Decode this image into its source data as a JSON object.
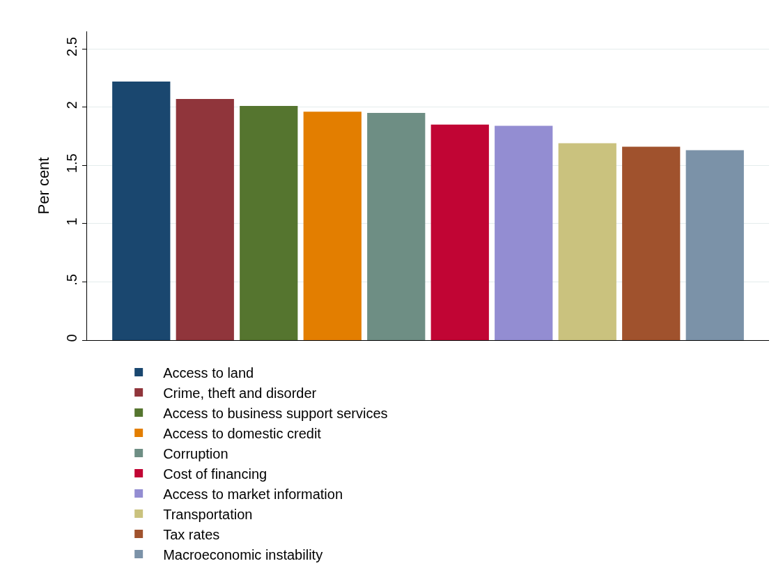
{
  "chart_data": {
    "type": "bar",
    "ylabel": "Per cent",
    "categories": [
      null,
      null,
      null,
      null,
      null,
      null,
      null,
      null,
      null,
      null
    ],
    "series": [
      {
        "name": "Access to land",
        "color": "#1a476f",
        "values": [
          2.22,
          null,
          null,
          null,
          null,
          null,
          null,
          null,
          null,
          null
        ]
      },
      {
        "name": "Crime, theft and disorder",
        "color": "#90353b",
        "values": [
          null,
          2.07,
          null,
          null,
          null,
          null,
          null,
          null,
          null,
          null
        ]
      },
      {
        "name": "Access to business support services",
        "color": "#55752f",
        "values": [
          null,
          null,
          2.01,
          null,
          null,
          null,
          null,
          null,
          null,
          null
        ]
      },
      {
        "name": "Access to domestic credit",
        "color": "#e37e00",
        "values": [
          null,
          null,
          null,
          1.96,
          null,
          null,
          null,
          null,
          null,
          null
        ]
      },
      {
        "name": "Corruption",
        "color": "#6e8e84",
        "values": [
          null,
          null,
          null,
          null,
          1.95,
          null,
          null,
          null,
          null,
          null
        ]
      },
      {
        "name": "Cost of financing",
        "color": "#c10534",
        "values": [
          null,
          null,
          null,
          null,
          null,
          1.85,
          null,
          null,
          null,
          null
        ]
      },
      {
        "name": "Access to market information",
        "color": "#938dd2",
        "values": [
          null,
          null,
          null,
          null,
          null,
          null,
          1.84,
          null,
          null,
          null
        ]
      },
      {
        "name": "Transportation",
        "color": "#cac27e",
        "values": [
          null,
          null,
          null,
          null,
          null,
          null,
          null,
          1.69,
          null,
          null
        ]
      },
      {
        "name": "Tax rates",
        "color": "#a0522d",
        "values": [
          null,
          null,
          null,
          null,
          null,
          null,
          null,
          null,
          1.66,
          null
        ]
      },
      {
        "name": "Macroeconomic instability",
        "color": "#7b92a8",
        "values": [
          null,
          null,
          null,
          null,
          null,
          null,
          null,
          null,
          null,
          1.63
        ]
      }
    ],
    "ylim": [
      0,
      2.65
    ],
    "yticks": [
      0,
      {
        "value": 0.5,
        "label": ".5"
      },
      1,
      1.5,
      2,
      2.5
    ],
    "grid": "y",
    "legend": "bottom",
    "tick_labels": "y"
  }
}
